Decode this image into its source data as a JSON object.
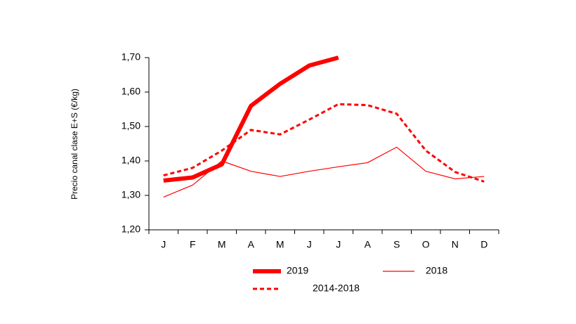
{
  "chart_data": {
    "type": "line",
    "y_label": "Precio canal clase E+S (€/kg)",
    "categories": [
      "J",
      "F",
      "M",
      "A",
      "M",
      "J",
      "J",
      "A",
      "S",
      "O",
      "N",
      "D"
    ],
    "series": [
      {
        "name": "2019",
        "color": "#ff0000",
        "line_width": 6,
        "dashed": false,
        "values": [
          1.343,
          1.352,
          1.39,
          1.56,
          1.624,
          1.677,
          1.7,
          null,
          null,
          null,
          null,
          null
        ]
      },
      {
        "name": "2018",
        "color": "#ff0000",
        "line_width": 1.2,
        "dashed": false,
        "values": [
          1.295,
          1.33,
          1.4,
          1.37,
          1.355,
          1.37,
          1.383,
          1.395,
          1.44,
          1.37,
          1.348,
          1.355
        ]
      },
      {
        "name": "2014-2018",
        "color": "#ff0000",
        "line_width": 3,
        "dashed": true,
        "values": [
          1.358,
          1.38,
          1.43,
          1.49,
          1.477,
          1.52,
          1.565,
          1.562,
          1.537,
          1.43,
          1.368,
          1.34
        ]
      }
    ],
    "ylim": [
      1.2,
      1.7
    ],
    "yticks": [
      {
        "value": 1.2,
        "label": "1,20"
      },
      {
        "value": 1.3,
        "label": "1,30"
      },
      {
        "value": 1.4,
        "label": "1,40"
      },
      {
        "value": 1.5,
        "label": "1,50"
      },
      {
        "value": 1.6,
        "label": "1,60"
      },
      {
        "value": 1.7,
        "label": "1,70"
      }
    ],
    "grid": false
  }
}
